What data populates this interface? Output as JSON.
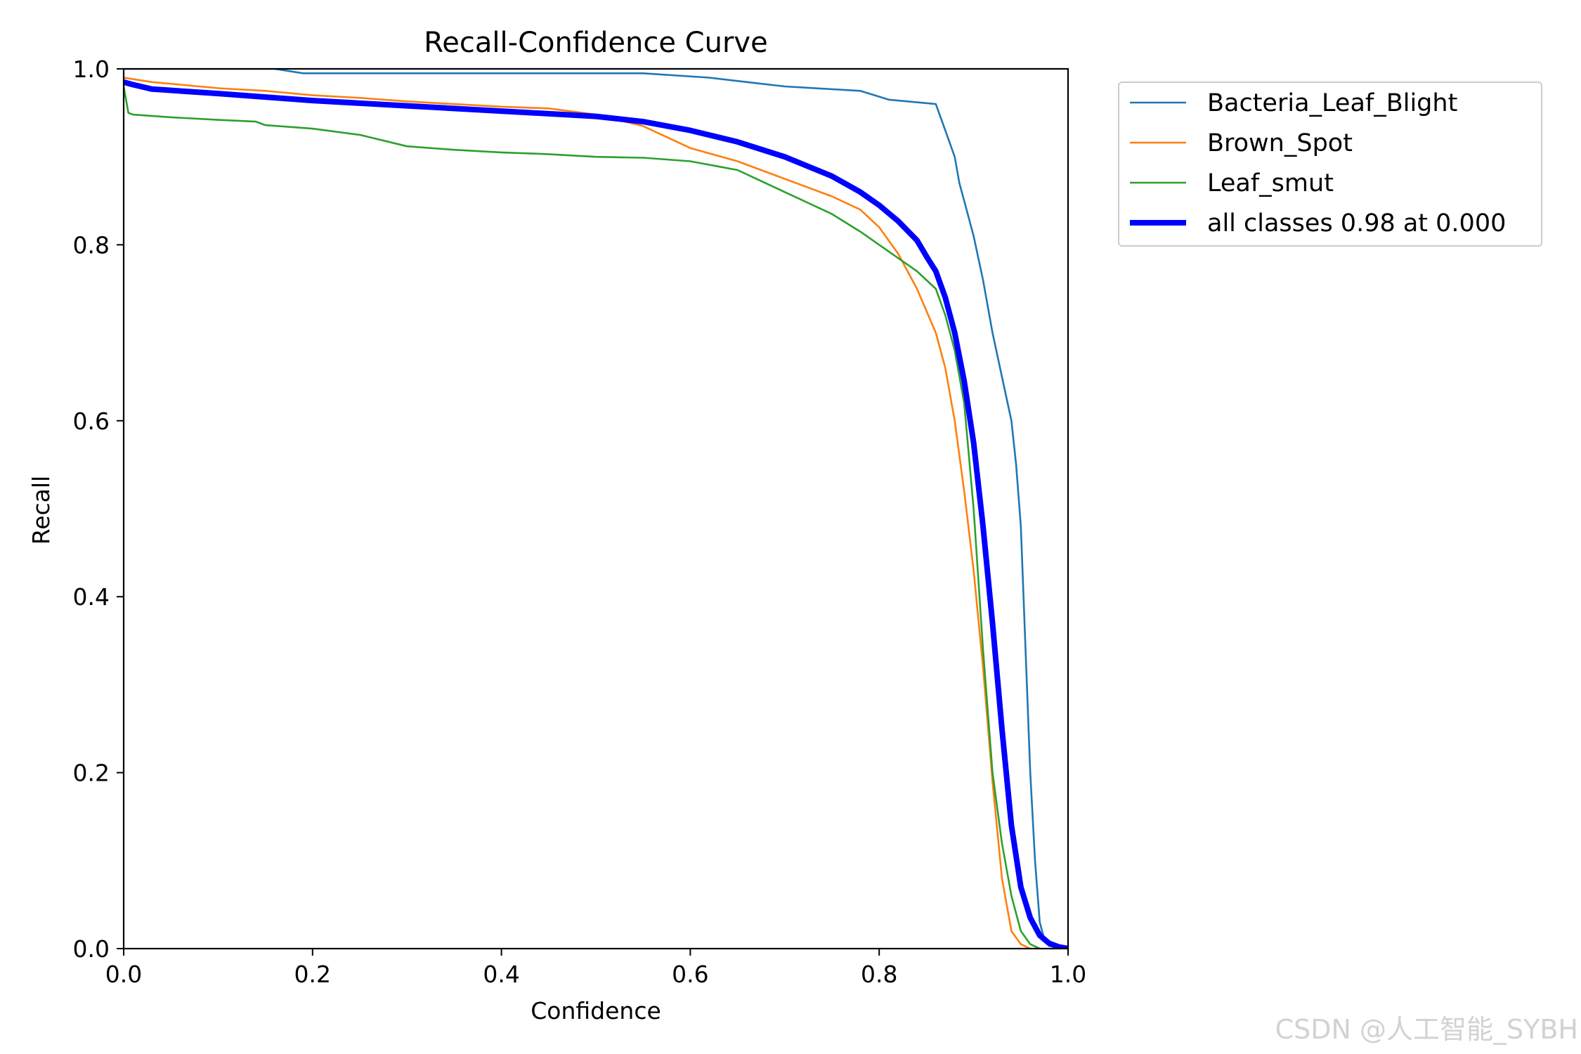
{
  "watermark": "CSDN @人工智能_SYBH",
  "chart_data": {
    "type": "line",
    "title": "Recall-Confidence Curve",
    "xlabel": "Confidence",
    "ylabel": "Recall",
    "xlim": [
      0,
      1
    ],
    "ylim": [
      0,
      1
    ],
    "xticks": [
      "0.0",
      "0.2",
      "0.4",
      "0.6",
      "0.8",
      "1.0"
    ],
    "yticks": [
      "0.0",
      "0.2",
      "0.4",
      "0.6",
      "0.8",
      "1.0"
    ],
    "grid": false,
    "legend_position": "outside-top-right",
    "series": [
      {
        "name": "Bacteria_Leaf_Blight",
        "color": "#1f77b4",
        "width": "thin",
        "x": [
          0.0,
          0.02,
          0.1,
          0.16,
          0.19,
          0.3,
          0.55,
          0.62,
          0.66,
          0.7,
          0.78,
          0.81,
          0.86,
          0.87,
          0.88,
          0.885,
          0.89,
          0.9,
          0.91,
          0.92,
          0.93,
          0.94,
          0.945,
          0.95,
          0.955,
          0.96,
          0.965,
          0.97,
          0.975,
          0.98,
          1.0
        ],
        "y": [
          1.0,
          1.0,
          1.0,
          1.0,
          0.995,
          0.995,
          0.995,
          0.99,
          0.985,
          0.98,
          0.975,
          0.965,
          0.96,
          0.93,
          0.9,
          0.87,
          0.85,
          0.81,
          0.76,
          0.7,
          0.65,
          0.6,
          0.55,
          0.48,
          0.34,
          0.2,
          0.1,
          0.03,
          0.01,
          0.003,
          0.0
        ]
      },
      {
        "name": "Brown_Spot",
        "color": "#ff7f0e",
        "width": "thin",
        "x": [
          0.0,
          0.03,
          0.06,
          0.1,
          0.15,
          0.2,
          0.25,
          0.3,
          0.35,
          0.4,
          0.45,
          0.5,
          0.55,
          0.6,
          0.65,
          0.7,
          0.75,
          0.78,
          0.8,
          0.82,
          0.84,
          0.86,
          0.87,
          0.88,
          0.89,
          0.9,
          0.91,
          0.92,
          0.93,
          0.94,
          0.95,
          0.96
        ],
        "y": [
          0.99,
          0.985,
          0.982,
          0.978,
          0.975,
          0.97,
          0.967,
          0.963,
          0.96,
          0.957,
          0.955,
          0.948,
          0.935,
          0.91,
          0.895,
          0.875,
          0.855,
          0.84,
          0.82,
          0.79,
          0.75,
          0.7,
          0.66,
          0.6,
          0.52,
          0.43,
          0.32,
          0.19,
          0.08,
          0.02,
          0.005,
          0.0
        ]
      },
      {
        "name": "Leaf_smut",
        "color": "#2ca02c",
        "width": "thin",
        "x": [
          0.0,
          0.005,
          0.01,
          0.05,
          0.1,
          0.14,
          0.15,
          0.2,
          0.25,
          0.3,
          0.35,
          0.4,
          0.45,
          0.5,
          0.55,
          0.6,
          0.65,
          0.7,
          0.75,
          0.78,
          0.8,
          0.82,
          0.84,
          0.86,
          0.87,
          0.88,
          0.89,
          0.9,
          0.91,
          0.92,
          0.93,
          0.94,
          0.95,
          0.96,
          0.97
        ],
        "y": [
          0.98,
          0.95,
          0.948,
          0.945,
          0.942,
          0.94,
          0.936,
          0.932,
          0.925,
          0.912,
          0.908,
          0.905,
          0.903,
          0.9,
          0.899,
          0.895,
          0.885,
          0.86,
          0.835,
          0.815,
          0.8,
          0.785,
          0.77,
          0.75,
          0.72,
          0.68,
          0.62,
          0.5,
          0.34,
          0.2,
          0.12,
          0.06,
          0.02,
          0.005,
          0.0
        ]
      },
      {
        "name": "all classes 0.98 at 0.000",
        "color": "#0000ff",
        "width": "thick",
        "x": [
          0.0,
          0.01,
          0.03,
          0.1,
          0.15,
          0.2,
          0.3,
          0.4,
          0.5,
          0.55,
          0.6,
          0.65,
          0.7,
          0.75,
          0.78,
          0.8,
          0.82,
          0.84,
          0.85,
          0.86,
          0.87,
          0.88,
          0.89,
          0.9,
          0.91,
          0.92,
          0.93,
          0.94,
          0.95,
          0.96,
          0.97,
          0.98,
          0.99,
          1.0
        ],
        "y": [
          0.985,
          0.982,
          0.977,
          0.972,
          0.968,
          0.964,
          0.958,
          0.952,
          0.946,
          0.94,
          0.93,
          0.917,
          0.9,
          0.878,
          0.86,
          0.845,
          0.827,
          0.805,
          0.787,
          0.77,
          0.74,
          0.7,
          0.645,
          0.575,
          0.48,
          0.37,
          0.25,
          0.14,
          0.07,
          0.035,
          0.015,
          0.006,
          0.002,
          0.0
        ]
      }
    ]
  }
}
